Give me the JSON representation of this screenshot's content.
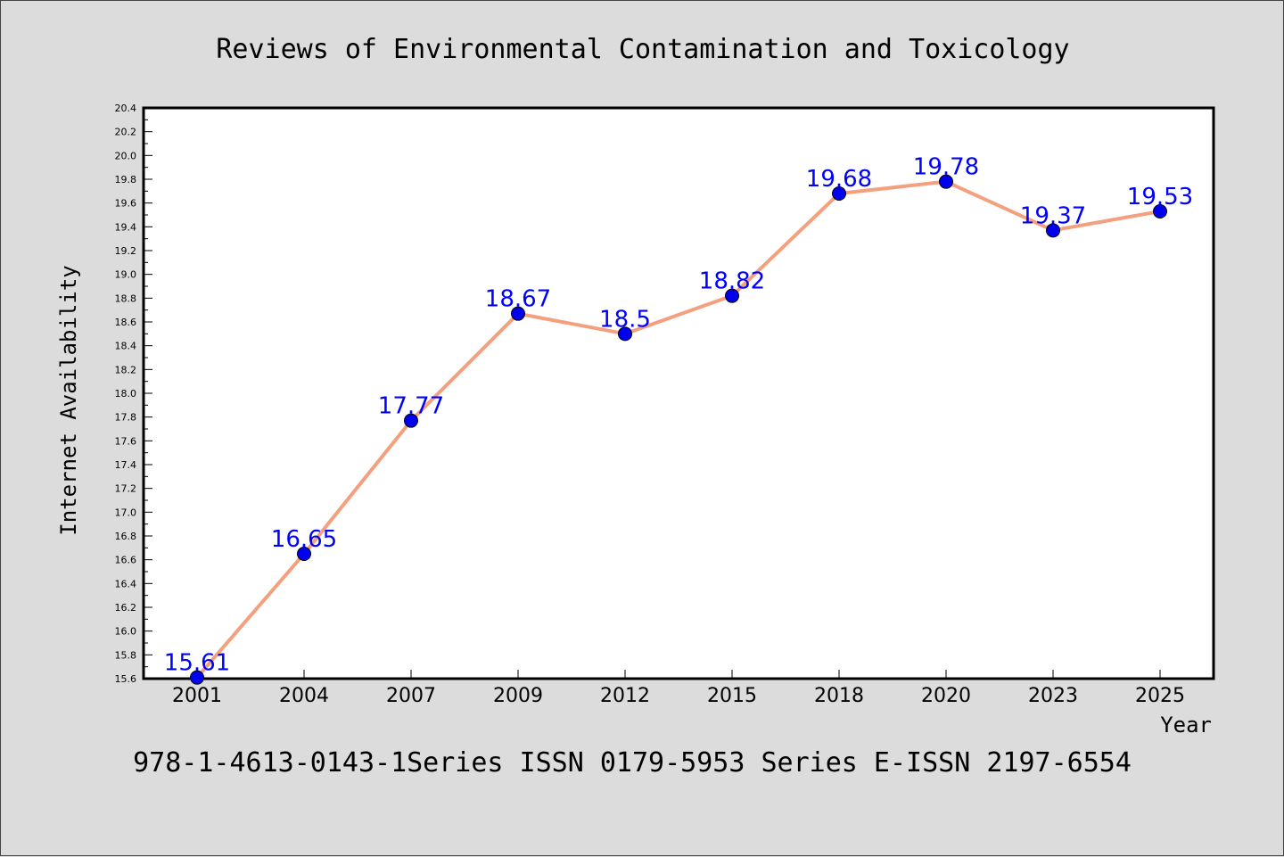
{
  "chart_data": {
    "type": "line",
    "title": "Reviews of Environmental Contamination and Toxicology",
    "xlabel": "Year",
    "ylabel": "Internet Availability",
    "categories": [
      "2001",
      "2004",
      "2007",
      "2009",
      "2012",
      "2015",
      "2018",
      "2020",
      "2023",
      "2025"
    ],
    "series": [
      {
        "values": [
          15.61,
          16.65,
          17.77,
          18.67,
          18.5,
          18.82,
          19.68,
          19.78,
          19.37,
          19.53
        ],
        "data_labels": [
          "15.61",
          "16.65",
          "17.77",
          "18.67",
          "18.5",
          "18.82",
          "19.68",
          "19.78",
          "19.37",
          "19.53"
        ],
        "line_color": "#f4a07e",
        "marker_color": "#0000ee"
      }
    ],
    "ylim": [
      15.6,
      20.4
    ],
    "yticks": [
      "15.6",
      "15.8",
      "16.0",
      "16.2",
      "16.4",
      "16.6",
      "16.8",
      "17.0",
      "17.2",
      "17.4",
      "17.6",
      "17.8",
      "18.0",
      "18.2",
      "18.4",
      "18.6",
      "18.8",
      "19.0",
      "19.2",
      "19.4",
      "19.6",
      "19.8",
      "20.0",
      "20.2",
      "20.4"
    ],
    "grid": false,
    "legend": "none",
    "data_label_color": "#0000ff"
  },
  "footer": "978-1-4613-0143-1Series ISSN 0179-5953 Series E-ISSN 2197-6554"
}
